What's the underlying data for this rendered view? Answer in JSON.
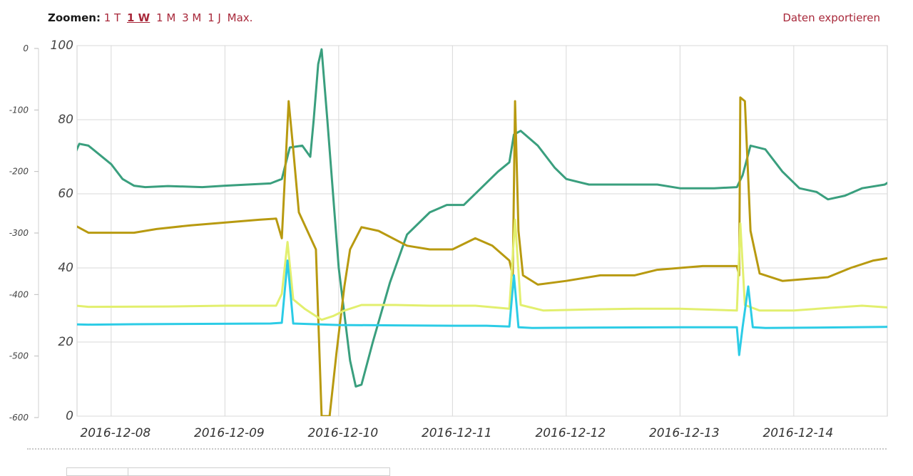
{
  "toolbar": {
    "zoom_label": "Zoomen:",
    "zoom_options": [
      "1 T",
      "1 W",
      "1 M",
      "3 M",
      "1 J",
      "Max."
    ],
    "zoom_selected": "1 W",
    "export_label": "Daten exportieren"
  },
  "colors": {
    "link": "#a8283a",
    "series": [
      "#3a9f7e",
      "#b89a10",
      "#e2ef6e",
      "#2ccce6"
    ],
    "grid": "#d8d8d8"
  },
  "chart_data": {
    "type": "line",
    "x_start": "2016-12-07",
    "x_range": [
      "2016-12-07T04:20",
      "2016-12-14T09:40"
    ],
    "x_ticks": [
      "2016-12-08",
      "2016-12-09",
      "2016-12-10",
      "2016-12-11",
      "2016-12-12",
      "2016-12-13",
      "2016-12-14"
    ],
    "y_left": {
      "ylim": [
        0,
        100
      ],
      "ticks": [
        "0",
        "20",
        "40",
        "60",
        "80",
        "100"
      ]
    },
    "y_right_secondary": {
      "ylim": [
        -600,
        0
      ],
      "ticks": [
        "0",
        "-100",
        "-200",
        "-300",
        "-400",
        "-500",
        "-600"
      ]
    },
    "grid": true,
    "legend": "none",
    "series": [
      {
        "color": "#3a9f7e",
        "points": [
          [
            0.0,
            61.8
          ],
          [
            0.1,
            62.4
          ],
          [
            0.3,
            62.2
          ],
          [
            0.4,
            62.8
          ],
          [
            0.55,
            62.5
          ],
          [
            0.6,
            65.0
          ],
          [
            0.67,
            70.0
          ],
          [
            0.72,
            73.5
          ],
          [
            0.8,
            73.0
          ],
          [
            1.0,
            68.0
          ],
          [
            1.1,
            64.0
          ],
          [
            1.2,
            62.2
          ],
          [
            1.3,
            61.8
          ],
          [
            1.5,
            62.1
          ],
          [
            1.8,
            61.8
          ],
          [
            2.0,
            62.2
          ],
          [
            2.2,
            62.5
          ],
          [
            2.4,
            62.8
          ],
          [
            2.5,
            64.0
          ],
          [
            2.57,
            72.5
          ],
          [
            2.68,
            73.0
          ],
          [
            2.75,
            70.0
          ],
          [
            2.78,
            80.0
          ],
          [
            2.82,
            95.0
          ],
          [
            2.85,
            99.0
          ],
          [
            2.9,
            80.0
          ],
          [
            3.0,
            40.0
          ],
          [
            3.1,
            15.0
          ],
          [
            3.15,
            8.0
          ],
          [
            3.2,
            8.5
          ],
          [
            3.3,
            20.0
          ],
          [
            3.45,
            36.0
          ],
          [
            3.6,
            49.0
          ],
          [
            3.8,
            55.0
          ],
          [
            3.95,
            57.0
          ],
          [
            4.1,
            57.0
          ],
          [
            4.3,
            63.0
          ],
          [
            4.4,
            66.0
          ],
          [
            4.5,
            68.5
          ],
          [
            4.54,
            76.0
          ],
          [
            4.6,
            77.0
          ],
          [
            4.75,
            73.0
          ],
          [
            4.9,
            67.0
          ],
          [
            5.0,
            64.0
          ],
          [
            5.2,
            62.5
          ],
          [
            5.5,
            62.5
          ],
          [
            5.8,
            62.5
          ],
          [
            6.0,
            61.5
          ],
          [
            6.3,
            61.5
          ],
          [
            6.5,
            61.8
          ],
          [
            6.55,
            65.0
          ],
          [
            6.62,
            73.0
          ],
          [
            6.75,
            72.0
          ],
          [
            6.9,
            66.0
          ],
          [
            7.05,
            61.5
          ],
          [
            7.2,
            60.5
          ],
          [
            7.3,
            58.5
          ],
          [
            7.45,
            59.5
          ],
          [
            7.6,
            61.5
          ],
          [
            7.8,
            62.5
          ],
          [
            7.9,
            64.5
          ],
          [
            8.0,
            66.0
          ],
          [
            8.15,
            66.5
          ],
          [
            8.3,
            65.0
          ],
          [
            8.45,
            63.0
          ],
          [
            8.55,
            66.0
          ],
          [
            8.62,
            71.0
          ],
          [
            8.7,
            71.5
          ],
          [
            8.85,
            68.0
          ],
          [
            9.0,
            63.5
          ],
          [
            9.2,
            62.5
          ],
          [
            9.5,
            62.5
          ],
          [
            9.8,
            63.0
          ],
          [
            10.0,
            62.5
          ],
          [
            10.3,
            62.5
          ],
          [
            10.45,
            62.0
          ],
          [
            10.52,
            65.0
          ],
          [
            10.6,
            71.0
          ],
          [
            10.7,
            70.5
          ],
          [
            10.85,
            66.0
          ],
          [
            11.0,
            62.5
          ],
          [
            11.2,
            61.5
          ],
          [
            11.5,
            62.5
          ],
          [
            11.75,
            63.0
          ],
          [
            11.95,
            62.5
          ],
          [
            12.1,
            61.5
          ],
          [
            12.3,
            62.0
          ],
          [
            12.45,
            62.3
          ],
          [
            12.55,
            63.5
          ],
          [
            12.62,
            71.0
          ],
          [
            12.72,
            71.5
          ],
          [
            12.9,
            68.0
          ],
          [
            13.05,
            64.0
          ],
          [
            13.3,
            62.5
          ],
          [
            13.6,
            62.3
          ],
          [
            13.8,
            62.3
          ],
          [
            14.0,
            62.5
          ],
          [
            14.1,
            62.3
          ]
        ]
      },
      {
        "color": "#b89a10",
        "points": [
          [
            0.0,
            52.0
          ],
          [
            0.08,
            53.3
          ],
          [
            0.3,
            53.3
          ],
          [
            0.37,
            51.0
          ],
          [
            0.4,
            48.0
          ],
          [
            0.48,
            48.0
          ],
          [
            0.52,
            48.0
          ],
          [
            0.55,
            60.0
          ],
          [
            0.58,
            85.0
          ],
          [
            0.61,
            60.0
          ],
          [
            0.65,
            52.0
          ],
          [
            0.8,
            49.5
          ],
          [
            1.2,
            49.5
          ],
          [
            1.4,
            50.5
          ],
          [
            1.7,
            51.5
          ],
          [
            2.3,
            53.0
          ],
          [
            2.45,
            53.3
          ],
          [
            2.5,
            48.0
          ],
          [
            2.56,
            85.0
          ],
          [
            2.6,
            72.0
          ],
          [
            2.65,
            55.0
          ],
          [
            2.8,
            45.0
          ],
          [
            2.85,
            0.0
          ],
          [
            2.92,
            0.0
          ],
          [
            2.98,
            17.0
          ],
          [
            3.05,
            35.0
          ],
          [
            3.1,
            45.0
          ],
          [
            3.2,
            51.0
          ],
          [
            3.35,
            50.0
          ],
          [
            3.6,
            46.0
          ],
          [
            3.8,
            45.0
          ],
          [
            4.0,
            45.0
          ],
          [
            4.2,
            48.0
          ],
          [
            4.35,
            46.0
          ],
          [
            4.5,
            42.0
          ],
          [
            4.53,
            38.0
          ],
          [
            4.55,
            85.0
          ],
          [
            4.58,
            50.0
          ],
          [
            4.62,
            38.0
          ],
          [
            4.75,
            35.5
          ],
          [
            5.0,
            36.5
          ],
          [
            5.3,
            38.0
          ],
          [
            5.6,
            38.0
          ],
          [
            5.8,
            39.5
          ],
          [
            6.2,
            40.5
          ],
          [
            6.5,
            40.5
          ],
          [
            6.52,
            38.0
          ],
          [
            6.53,
            86.0
          ],
          [
            6.57,
            85.0
          ],
          [
            6.62,
            50.0
          ],
          [
            6.7,
            38.5
          ],
          [
            6.9,
            36.5
          ],
          [
            7.3,
            37.5
          ],
          [
            7.5,
            40.0
          ],
          [
            7.7,
            42.0
          ],
          [
            7.9,
            43.0
          ],
          [
            8.3,
            42.0
          ],
          [
            8.5,
            40.0
          ],
          [
            8.6,
            38.0
          ],
          [
            8.62,
            85.0
          ],
          [
            8.66,
            50.0
          ],
          [
            8.7,
            37.5
          ],
          [
            9.0,
            38.5
          ],
          [
            9.2,
            39.5
          ],
          [
            9.4,
            40.5
          ],
          [
            9.6,
            39.5
          ],
          [
            9.8,
            39.0
          ],
          [
            10.0,
            38.5
          ],
          [
            10.2,
            38.5
          ],
          [
            10.5,
            38.5
          ],
          [
            10.52,
            37.0
          ],
          [
            10.56,
            85.0
          ],
          [
            10.6,
            50.0
          ],
          [
            10.65,
            37.0
          ],
          [
            10.9,
            36.5
          ],
          [
            11.2,
            36.5
          ],
          [
            11.3,
            38.5
          ],
          [
            11.5,
            40.0
          ],
          [
            11.8,
            40.0
          ],
          [
            12.0,
            39.0
          ],
          [
            12.2,
            40.0
          ],
          [
            12.4,
            40.0
          ],
          [
            12.5,
            39.5
          ],
          [
            12.55,
            38.0
          ],
          [
            12.59,
            85.0
          ],
          [
            12.63,
            50.0
          ],
          [
            12.7,
            37.0
          ],
          [
            12.9,
            37.5
          ],
          [
            13.2,
            38.0
          ],
          [
            13.4,
            38.5
          ],
          [
            13.6,
            38.5
          ],
          [
            13.8,
            38.0
          ],
          [
            14.0,
            38.5
          ],
          [
            14.1,
            38.0
          ]
        ]
      },
      {
        "color": "#e2ef6e",
        "points": [
          [
            0.0,
            29.8
          ],
          [
            0.3,
            29.8
          ],
          [
            0.5,
            29.6
          ],
          [
            0.55,
            35.0
          ],
          [
            0.58,
            48.0
          ],
          [
            0.62,
            30.0
          ],
          [
            0.8,
            29.5
          ],
          [
            1.5,
            29.6
          ],
          [
            2.0,
            29.8
          ],
          [
            2.45,
            29.8
          ],
          [
            2.5,
            33.0
          ],
          [
            2.55,
            47.0
          ],
          [
            2.6,
            31.5
          ],
          [
            2.7,
            29.0
          ],
          [
            2.85,
            26.0
          ],
          [
            2.95,
            27.0
          ],
          [
            3.05,
            28.5
          ],
          [
            3.2,
            30.0
          ],
          [
            3.5,
            30.0
          ],
          [
            3.8,
            29.8
          ],
          [
            4.2,
            29.8
          ],
          [
            4.5,
            29.0
          ],
          [
            4.55,
            53.0
          ],
          [
            4.6,
            30.0
          ],
          [
            4.8,
            28.5
          ],
          [
            5.2,
            28.8
          ],
          [
            5.6,
            29.0
          ],
          [
            6.0,
            29.0
          ],
          [
            6.5,
            28.5
          ],
          [
            6.53,
            52.0
          ],
          [
            6.57,
            30.0
          ],
          [
            6.7,
            28.5
          ],
          [
            7.0,
            28.5
          ],
          [
            7.3,
            29.2
          ],
          [
            7.6,
            29.8
          ],
          [
            8.0,
            29.0
          ],
          [
            8.3,
            28.8
          ],
          [
            8.55,
            28.8
          ],
          [
            8.6,
            53.0
          ],
          [
            8.64,
            30.0
          ],
          [
            8.7,
            28.7
          ],
          [
            9.0,
            28.6
          ],
          [
            9.5,
            28.8
          ],
          [
            10.0,
            28.8
          ],
          [
            10.4,
            28.8
          ],
          [
            10.52,
            29.5
          ],
          [
            10.56,
            52.0
          ],
          [
            10.6,
            30.0
          ],
          [
            10.68,
            28.5
          ],
          [
            10.9,
            28.5
          ],
          [
            11.2,
            28.6
          ],
          [
            11.6,
            29.0
          ],
          [
            12.0,
            29.0
          ],
          [
            12.4,
            28.7
          ],
          [
            12.55,
            29.5
          ],
          [
            12.6,
            52.0
          ],
          [
            12.65,
            30.0
          ],
          [
            12.72,
            28.6
          ],
          [
            13.0,
            28.5
          ],
          [
            13.4,
            28.6
          ],
          [
            13.8,
            28.6
          ],
          [
            14.1,
            28.6
          ]
        ]
      },
      {
        "color": "#2ccce6",
        "points": [
          [
            0.0,
            24.8
          ],
          [
            0.3,
            25.0
          ],
          [
            0.48,
            25.1
          ],
          [
            0.55,
            27.0
          ],
          [
            0.59,
            42.0
          ],
          [
            0.62,
            24.8
          ],
          [
            0.8,
            24.7
          ],
          [
            1.2,
            24.8
          ],
          [
            1.8,
            24.9
          ],
          [
            2.4,
            25.0
          ],
          [
            2.5,
            25.2
          ],
          [
            2.55,
            42.0
          ],
          [
            2.6,
            25.0
          ],
          [
            3.0,
            24.6
          ],
          [
            3.5,
            24.5
          ],
          [
            4.0,
            24.4
          ],
          [
            4.3,
            24.4
          ],
          [
            4.5,
            24.2
          ],
          [
            4.54,
            38.0
          ],
          [
            4.58,
            24.0
          ],
          [
            4.7,
            23.8
          ],
          [
            5.2,
            23.9
          ],
          [
            6.0,
            24.0
          ],
          [
            6.4,
            24.0
          ],
          [
            6.5,
            24.0
          ],
          [
            6.52,
            16.5
          ],
          [
            6.55,
            24.0
          ],
          [
            6.6,
            35.0
          ],
          [
            6.64,
            24.0
          ],
          [
            6.75,
            23.8
          ],
          [
            7.2,
            23.9
          ],
          [
            7.8,
            24.1
          ],
          [
            8.5,
            24.3
          ],
          [
            8.6,
            24.5
          ],
          [
            8.64,
            36.0
          ],
          [
            8.68,
            24.0
          ],
          [
            9.5,
            24.0
          ],
          [
            10.4,
            24.1
          ],
          [
            10.52,
            24.1
          ],
          [
            10.55,
            15.5
          ],
          [
            10.58,
            37.0
          ],
          [
            10.62,
            24.0
          ],
          [
            10.7,
            23.6
          ],
          [
            11.2,
            23.7
          ],
          [
            11.8,
            23.9
          ],
          [
            12.4,
            24.2
          ],
          [
            12.55,
            24.3
          ],
          [
            12.58,
            20.5
          ],
          [
            12.62,
            37.0
          ],
          [
            12.66,
            24.0
          ],
          [
            12.75,
            23.7
          ],
          [
            13.2,
            23.7
          ],
          [
            13.8,
            23.7
          ],
          [
            14.1,
            23.7
          ]
        ]
      }
    ]
  }
}
